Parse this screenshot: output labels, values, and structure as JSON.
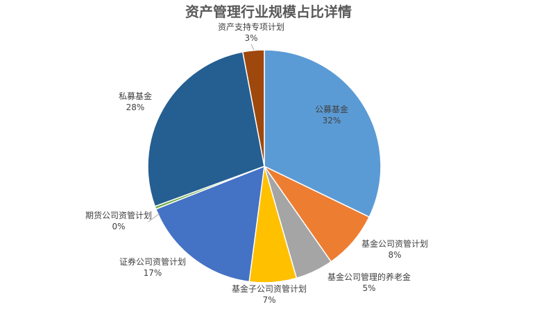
{
  "chart_data": {
    "type": "pie",
    "title": "资产管理行业规模占比详情",
    "slices": [
      {
        "name": "公募基金",
        "percent_label": "32%",
        "value": 32.5,
        "color": "#5B9BD5"
      },
      {
        "name": "基金公司资管计划",
        "percent_label": "8%",
        "value": 8.2,
        "color": "#ED7D31"
      },
      {
        "name": "基金公司管理的养老金",
        "percent_label": "5%",
        "value": 5.3,
        "color": "#A5A5A5"
      },
      {
        "name": "基金子公司资管计划",
        "percent_label": "7%",
        "value": 6.6,
        "color": "#FFC000"
      },
      {
        "name": "证券公司资管计划",
        "percent_label": "17%",
        "value": 17.1,
        "color": "#4472C4"
      },
      {
        "name": "期货公司资管计划",
        "percent_label": "0%",
        "value": 0.4,
        "color": "#70AD47"
      },
      {
        "name": "私募基金",
        "percent_label": "28%",
        "value": 27.9,
        "color": "#255E91"
      },
      {
        "name": "资产支持专项计划",
        "percent_label": "3%",
        "value": 3.0,
        "color": "#9E480E"
      }
    ],
    "start_angle_deg": 0,
    "direction": "clockwise",
    "legend": "none"
  }
}
